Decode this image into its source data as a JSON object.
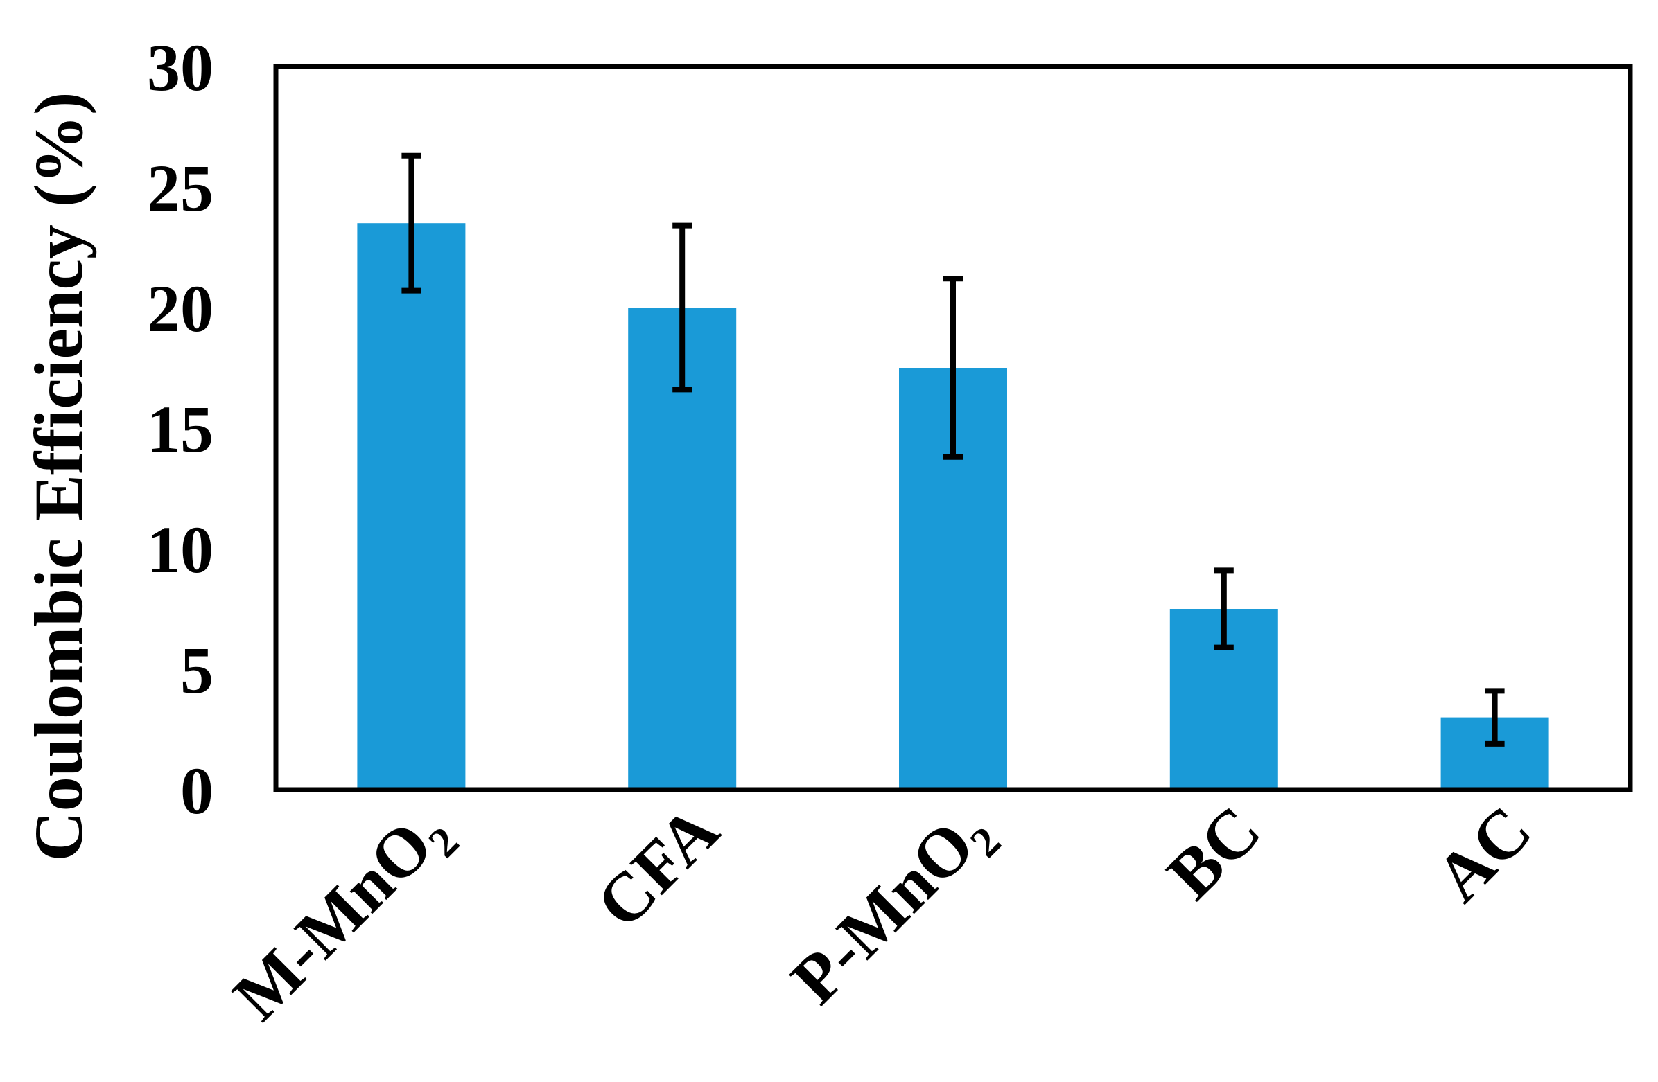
{
  "chart_data": {
    "type": "bar",
    "title": "",
    "xlabel": "",
    "ylabel": "Coulombic Efficiency (%)",
    "categories": [
      {
        "label": "M-MnO",
        "sub": "2"
      },
      {
        "label": "CFA",
        "sub": ""
      },
      {
        "label": "P-MnO",
        "sub": "2"
      },
      {
        "label": "BC",
        "sub": ""
      },
      {
        "label": "AC",
        "sub": ""
      }
    ],
    "values": [
      23.5,
      20.0,
      17.5,
      7.5,
      3.0
    ],
    "errors": [
      2.8,
      3.4,
      3.7,
      1.6,
      1.1
    ],
    "ylim": [
      0,
      30
    ],
    "yticks": [
      "0",
      "5",
      "10",
      "15",
      "20",
      "25",
      "30"
    ],
    "grid": false,
    "legend": "none",
    "bar_color": "#1a9ad7",
    "error_bar_color": "#000000"
  }
}
